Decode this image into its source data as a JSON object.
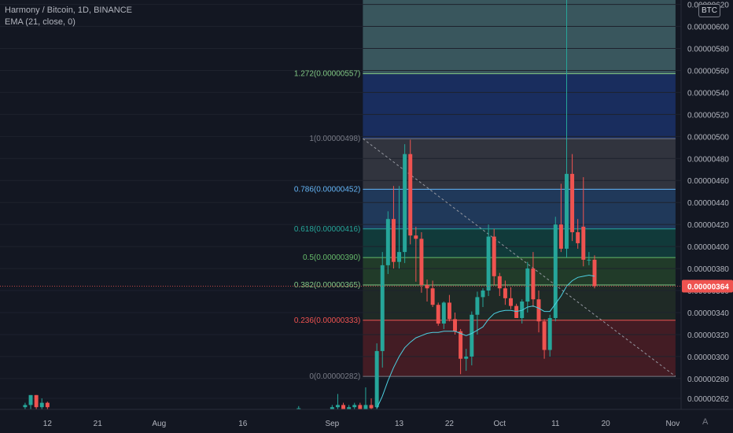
{
  "legend": {
    "symbol": "Harmony / Bitcoin, 1D, BINANCE",
    "indicator": "EMA (21, close, 0)"
  },
  "currency_badge": "BTC",
  "scale_mode": "A",
  "colors": {
    "background": "#131722",
    "up": "#26a69a",
    "down": "#ef5350",
    "ema": "#4dd0e1",
    "axis_text": "#b2b5be",
    "price_tag": "#ef5350"
  },
  "chart_data": {
    "type": "candlestick",
    "title": "",
    "xlabel": "",
    "ylabel": "",
    "ylim": [
      2.52e-06,
      6.24e-06
    ],
    "y_ticks": [
      "0.00000262",
      "0.00000280",
      "0.00000300",
      "0.00000320",
      "0.00000340",
      "0.00000360",
      "0.00000380",
      "0.00000400",
      "0.00000420",
      "0.00000440",
      "0.00000460",
      "0.00000480",
      "0.00000500",
      "0.00000520",
      "0.00000540",
      "0.00000560",
      "0.00000580",
      "0.00000600",
      "0.00000620"
    ],
    "x_ticks": [
      {
        "label": "12",
        "date": "2021-07-12"
      },
      {
        "label": "21",
        "date": "2021-07-21"
      },
      {
        "label": "Aug",
        "date": "2021-08-01"
      },
      {
        "label": "16",
        "date": "2021-08-16"
      },
      {
        "label": "Sep",
        "date": "2021-09-01"
      },
      {
        "label": "13",
        "date": "2021-09-13"
      },
      {
        "label": "22",
        "date": "2021-09-22"
      },
      {
        "label": "Oct",
        "date": "2021-10-01"
      },
      {
        "label": "11",
        "date": "2021-10-11"
      },
      {
        "label": "20",
        "date": "2021-10-20"
      },
      {
        "label": "Nov",
        "date": "2021-11-01"
      }
    ],
    "x_range": [
      "2021-07-04",
      "2021-11-03"
    ],
    "last_price": {
      "value": 3.64e-06,
      "label": "0.00000364"
    },
    "fibonacci": {
      "start_date": "2021-09-07",
      "end_date": "2021-11-02",
      "levels": [
        {
          "ratio": "1.272",
          "value": 5.57e-06,
          "label": "1.272(0.00000557)",
          "color": "#81c784"
        },
        {
          "ratio": "1",
          "value": 4.98e-06,
          "label": "1(0.00000498)",
          "color": "#787b86"
        },
        {
          "ratio": "0.786",
          "value": 4.52e-06,
          "label": "0.786(0.00000452)",
          "color": "#64b5f6"
        },
        {
          "ratio": "0.618",
          "value": 4.16e-06,
          "label": "0.618(0.00000416)",
          "color": "#26a69a"
        },
        {
          "ratio": "0.5",
          "value": 3.9e-06,
          "label": "0.5(0.00000390)",
          "color": "#66bb6a"
        },
        {
          "ratio": "0.382",
          "value": 3.65e-06,
          "label": "0.382(0.00000365)",
          "color": "#81c784"
        },
        {
          "ratio": "0.236",
          "value": 3.33e-06,
          "label": "0.236(0.00000333)",
          "color": "#ef5350"
        },
        {
          "ratio": "0",
          "value": 2.82e-06,
          "label": "0(0.00000282)",
          "color": "#787b86"
        }
      ],
      "zones": [
        {
          "from": 5.57e-06,
          "to": 6.24e-06,
          "color": "#5a8a8e"
        },
        {
          "from": 4.98e-06,
          "to": 5.57e-06,
          "color": "#1f3f8f"
        },
        {
          "from": 4.52e-06,
          "to": 4.98e-06,
          "color": "#4a4c55"
        },
        {
          "from": 4.16e-06,
          "to": 4.52e-06,
          "color": "#2c5688"
        },
        {
          "from": 3.9e-06,
          "to": 4.16e-06,
          "color": "#10574f"
        },
        {
          "from": 3.65e-06,
          "to": 3.9e-06,
          "color": "#2d5a2f"
        },
        {
          "from": 3.33e-06,
          "to": 3.65e-06,
          "color": "#2a3a2a"
        },
        {
          "from": 2.82e-06,
          "to": 3.33e-06,
          "color": "#6b2026"
        }
      ],
      "trend_line": {
        "from": {
          "date": "2021-09-07",
          "value": 4.98e-06
        },
        "to": {
          "date": "2021-11-02",
          "value": 2.82e-06
        }
      }
    },
    "candles": [
      {
        "date": "2021-07-08",
        "o": 2.54e-06,
        "h": 2.58e-06,
        "l": 2.51e-06,
        "c": 2.56e-06
      },
      {
        "date": "2021-07-09",
        "o": 2.56e-06,
        "h": 2.64e-06,
        "l": 2.52e-06,
        "c": 2.65e-06
      },
      {
        "date": "2021-07-10",
        "o": 2.65e-06,
        "h": 2.64e-06,
        "l": 2.52e-06,
        "c": 2.54e-06
      },
      {
        "date": "2021-07-11",
        "o": 2.54e-06,
        "h": 2.62e-06,
        "l": 2.52e-06,
        "c": 2.58e-06
      },
      {
        "date": "2021-07-12",
        "o": 2.58e-06,
        "h": 2.59e-06,
        "l": 2.52e-06,
        "c": 2.54e-06
      },
      {
        "date": "2021-08-26",
        "o": 2.52e-06,
        "h": 2.55e-06,
        "l": 2.51e-06,
        "c": 2.53e-06
      },
      {
        "date": "2021-09-01",
        "o": 2.52e-06,
        "h": 2.56e-06,
        "l": 2.51e-06,
        "c": 2.54e-06
      },
      {
        "date": "2021-09-02",
        "o": 2.54e-06,
        "h": 2.66e-06,
        "l": 2.52e-06,
        "c": 2.56e-06
      },
      {
        "date": "2021-09-03",
        "o": 2.56e-06,
        "h": 2.58e-06,
        "l": 2.51e-06,
        "c": 2.52e-06
      },
      {
        "date": "2021-09-04",
        "o": 2.52e-06,
        "h": 2.56e-06,
        "l": 2.51e-06,
        "c": 2.54e-06
      },
      {
        "date": "2021-09-05",
        "o": 2.54e-06,
        "h": 2.58e-06,
        "l": 2.52e-06,
        "c": 2.56e-06
      },
      {
        "date": "2021-09-06",
        "o": 2.56e-06,
        "h": 2.58e-06,
        "l": 2.51e-06,
        "c": 2.52e-06
      },
      {
        "date": "2021-09-07",
        "o": 2.52e-06,
        "h": 2.72e-06,
        "l": 2.51e-06,
        "c": 2.56e-06
      },
      {
        "date": "2021-09-08",
        "o": 2.56e-06,
        "h": 2.62e-06,
        "l": 2.52e-06,
        "c": 2.53e-06
      },
      {
        "date": "2021-09-09",
        "o": 2.54e-06,
        "h": 3.12e-06,
        "l": 2.52e-06,
        "c": 3.05e-06
      },
      {
        "date": "2021-09-10",
        "o": 3.05e-06,
        "h": 3.95e-06,
        "l": 2.9e-06,
        "c": 3.83e-06
      },
      {
        "date": "2021-09-11",
        "o": 3.83e-06,
        "h": 4.32e-06,
        "l": 3.75e-06,
        "c": 4.25e-06
      },
      {
        "date": "2021-09-12",
        "o": 4.25e-06,
        "h": 4.55e-06,
        "l": 3.8e-06,
        "c": 3.86e-06
      },
      {
        "date": "2021-09-13",
        "o": 3.86e-06,
        "h": 4.55e-06,
        "l": 3.8e-06,
        "c": 3.95e-06
      },
      {
        "date": "2021-09-14",
        "o": 3.95e-06,
        "h": 4.93e-06,
        "l": 3.85e-06,
        "c": 4.84e-06
      },
      {
        "date": "2021-09-15",
        "o": 4.84e-06,
        "h": 4.97e-06,
        "l": 4.02e-06,
        "c": 4.1e-06
      },
      {
        "date": "2021-09-16",
        "o": 4.1e-06,
        "h": 4.18e-06,
        "l": 3.68e-06,
        "c": 4.07e-06
      },
      {
        "date": "2021-09-17",
        "o": 4.07e-06,
        "h": 4.13e-06,
        "l": 3.58e-06,
        "c": 3.65e-06
      },
      {
        "date": "2021-09-18",
        "o": 3.65e-06,
        "h": 3.7e-06,
        "l": 3.5e-06,
        "c": 3.62e-06
      },
      {
        "date": "2021-09-19",
        "o": 3.62e-06,
        "h": 3.69e-06,
        "l": 3.45e-06,
        "c": 3.47e-06
      },
      {
        "date": "2021-09-20",
        "o": 3.47e-06,
        "h": 3.49e-06,
        "l": 3.28e-06,
        "c": 3.3e-06
      },
      {
        "date": "2021-09-21",
        "o": 3.3e-06,
        "h": 3.5e-06,
        "l": 3.25e-06,
        "c": 3.49e-06
      },
      {
        "date": "2021-09-22",
        "o": 3.49e-06,
        "h": 3.56e-06,
        "l": 3.32e-06,
        "c": 3.34e-06
      },
      {
        "date": "2021-09-23",
        "o": 3.34e-06,
        "h": 3.4e-06,
        "l": 3.2e-06,
        "c": 3.23e-06
      },
      {
        "date": "2021-09-24",
        "o": 3.23e-06,
        "h": 3.25e-06,
        "l": 2.84e-06,
        "c": 2.98e-06
      },
      {
        "date": "2021-09-25",
        "o": 2.98e-06,
        "h": 3.07e-06,
        "l": 2.87e-06,
        "c": 3e-06
      },
      {
        "date": "2021-09-26",
        "o": 3e-06,
        "h": 3.41e-06,
        "l": 2.92e-06,
        "c": 3.38e-06
      },
      {
        "date": "2021-09-27",
        "o": 3.38e-06,
        "h": 3.59e-06,
        "l": 3.2e-06,
        "c": 3.54e-06
      },
      {
        "date": "2021-09-28",
        "o": 3.54e-06,
        "h": 3.62e-06,
        "l": 3.45e-06,
        "c": 3.6e-06
      },
      {
        "date": "2021-09-29",
        "o": 3.6e-06,
        "h": 4.2e-06,
        "l": 3.55e-06,
        "c": 4.09e-06
      },
      {
        "date": "2021-09-30",
        "o": 4.09e-06,
        "h": 4.16e-06,
        "l": 3.65e-06,
        "c": 3.73e-06
      },
      {
        "date": "2021-10-01",
        "o": 3.73e-06,
        "h": 3.76e-06,
        "l": 3.55e-06,
        "c": 3.62e-06
      },
      {
        "date": "2021-10-02",
        "o": 3.62e-06,
        "h": 3.69e-06,
        "l": 3.47e-06,
        "c": 3.53e-06
      },
      {
        "date": "2021-10-03",
        "o": 3.53e-06,
        "h": 3.63e-06,
        "l": 3.43e-06,
        "c": 3.46e-06
      },
      {
        "date": "2021-10-04",
        "o": 3.46e-06,
        "h": 3.48e-06,
        "l": 3.35e-06,
        "c": 3.35e-06
      },
      {
        "date": "2021-10-05",
        "o": 3.35e-06,
        "h": 3.52e-06,
        "l": 3.3e-06,
        "c": 3.5e-06
      },
      {
        "date": "2021-10-06",
        "o": 3.5e-06,
        "h": 3.86e-06,
        "l": 3.4e-06,
        "c": 3.8e-06
      },
      {
        "date": "2021-10-07",
        "o": 3.8e-06,
        "h": 3.95e-06,
        "l": 3.45e-06,
        "c": 3.52e-06
      },
      {
        "date": "2021-10-08",
        "o": 3.52e-06,
        "h": 3.6e-06,
        "l": 3.22e-06,
        "c": 3.32e-06
      },
      {
        "date": "2021-10-09",
        "o": 3.32e-06,
        "h": 3.34e-06,
        "l": 2.98e-06,
        "c": 3.06e-06
      },
      {
        "date": "2021-10-10",
        "o": 3.06e-06,
        "h": 3.38e-06,
        "l": 3e-06,
        "c": 3.35e-06
      },
      {
        "date": "2021-10-11",
        "o": 3.35e-06,
        "h": 4.27e-06,
        "l": 3.32e-06,
        "c": 4.2e-06
      },
      {
        "date": "2021-10-12",
        "o": 4.2e-06,
        "h": 4.57e-06,
        "l": 3.95e-06,
        "c": 3.98e-06
      },
      {
        "date": "2021-10-13",
        "o": 3.98e-06,
        "h": 6.24e-06,
        "l": 3.9e-06,
        "c": 4.66e-06
      },
      {
        "date": "2021-10-14",
        "o": 4.66e-06,
        "h": 4.84e-06,
        "l": 4.05e-06,
        "c": 4.13e-06
      },
      {
        "date": "2021-10-15",
        "o": 4.13e-06,
        "h": 4.25e-06,
        "l": 3.98e-06,
        "c": 4.03e-06
      },
      {
        "date": "2021-10-16",
        "o": 4.18e-06,
        "h": 4.63e-06,
        "l": 3.82e-06,
        "c": 3.88e-06
      },
      {
        "date": "2021-10-17",
        "o": 3.88e-06,
        "h": 3.95e-06,
        "l": 3.83e-06,
        "c": 3.88e-06
      },
      {
        "date": "2021-10-18",
        "o": 3.88e-06,
        "h": 3.92e-06,
        "l": 3.62e-06,
        "c": 3.64e-06
      }
    ],
    "ema": {
      "name": "EMA (21, close, 0)",
      "points": [
        {
          "date": "2021-09-09",
          "v": 2.53e-06
        },
        {
          "date": "2021-09-10",
          "v": 2.64e-06
        },
        {
          "date": "2021-09-11",
          "v": 2.78e-06
        },
        {
          "date": "2021-09-12",
          "v": 2.9e-06
        },
        {
          "date": "2021-09-13",
          "v": 3e-06
        },
        {
          "date": "2021-09-14",
          "v": 3.08e-06
        },
        {
          "date": "2021-09-15",
          "v": 3.13e-06
        },
        {
          "date": "2021-09-16",
          "v": 3.17e-06
        },
        {
          "date": "2021-09-17",
          "v": 3.19e-06
        },
        {
          "date": "2021-09-18",
          "v": 3.21e-06
        },
        {
          "date": "2021-09-19",
          "v": 3.22e-06
        },
        {
          "date": "2021-09-20",
          "v": 3.22e-06
        },
        {
          "date": "2021-09-21",
          "v": 3.23e-06
        },
        {
          "date": "2021-09-22",
          "v": 3.23e-06
        },
        {
          "date": "2021-09-23",
          "v": 3.23e-06
        },
        {
          "date": "2021-09-24",
          "v": 3.21e-06
        },
        {
          "date": "2021-09-25",
          "v": 3.19e-06
        },
        {
          "date": "2021-09-26",
          "v": 3.21e-06
        },
        {
          "date": "2021-09-27",
          "v": 3.24e-06
        },
        {
          "date": "2021-09-28",
          "v": 3.27e-06
        },
        {
          "date": "2021-09-29",
          "v": 3.34e-06
        },
        {
          "date": "2021-09-30",
          "v": 3.39e-06
        },
        {
          "date": "2021-10-01",
          "v": 3.41e-06
        },
        {
          "date": "2021-10-02",
          "v": 3.42e-06
        },
        {
          "date": "2021-10-03",
          "v": 3.42e-06
        },
        {
          "date": "2021-10-04",
          "v": 3.41e-06
        },
        {
          "date": "2021-10-05",
          "v": 3.42e-06
        },
        {
          "date": "2021-10-06",
          "v": 3.45e-06
        },
        {
          "date": "2021-10-07",
          "v": 3.46e-06
        },
        {
          "date": "2021-10-08",
          "v": 3.44e-06
        },
        {
          "date": "2021-10-09",
          "v": 3.41e-06
        },
        {
          "date": "2021-10-10",
          "v": 3.41e-06
        },
        {
          "date": "2021-10-11",
          "v": 3.48e-06
        },
        {
          "date": "2021-10-12",
          "v": 3.55e-06
        },
        {
          "date": "2021-10-13",
          "v": 3.64e-06
        },
        {
          "date": "2021-10-14",
          "v": 3.69e-06
        },
        {
          "date": "2021-10-15",
          "v": 3.72e-06
        },
        {
          "date": "2021-10-16",
          "v": 3.73e-06
        },
        {
          "date": "2021-10-17",
          "v": 3.74e-06
        },
        {
          "date": "2021-10-18",
          "v": 3.73e-06
        }
      ]
    }
  }
}
